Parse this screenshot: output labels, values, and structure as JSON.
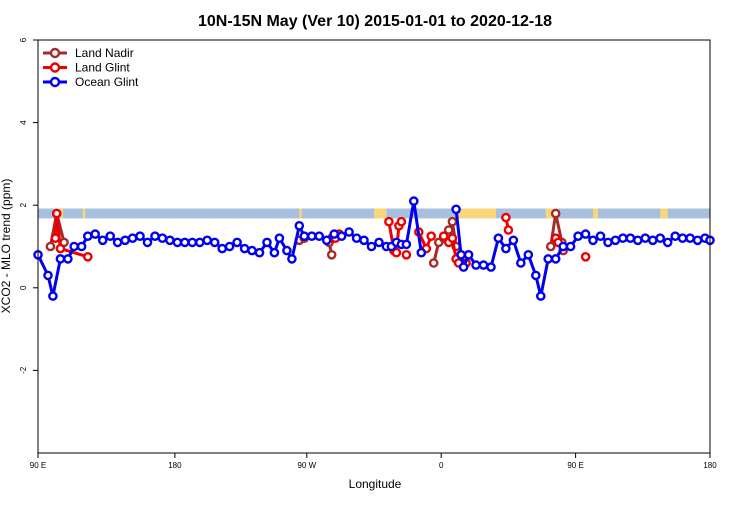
{
  "chart_data": {
    "type": "line",
    "title": "10N-15N May (Ver 10)   2015-01-01 to 2020-12-18",
    "xlabel": "Longitude",
    "ylabel": "XCO2 - MLO trend (ppm)",
    "xlim": [
      -90,
      180
    ],
    "ylim": [
      -4,
      6
    ],
    "x_ticks": [
      {
        "value": -90,
        "label": "90 E"
      },
      {
        "value": -35,
        "label": "180"
      },
      {
        "value": 18,
        "label": "90 W"
      },
      {
        "value": 72,
        "label": "0"
      },
      {
        "value": 126,
        "label": "90 E"
      },
      {
        "value": 180,
        "label": "180"
      }
    ],
    "y_ticks": [
      -2,
      0,
      2,
      4,
      6
    ],
    "grid": false,
    "legend_position": "top-left",
    "band": {
      "y_min": 1.68,
      "y_max": 1.92,
      "color": "#a9bfde",
      "land_color": "#f7d77a",
      "land_x": [
        [
          -83,
          -80
        ],
        [
          -72,
          -71
        ],
        [
          15,
          16
        ],
        [
          45,
          50
        ],
        [
          79,
          94
        ],
        [
          114,
          117
        ],
        [
          133,
          135
        ],
        [
          160,
          163
        ]
      ]
    },
    "series": [
      {
        "name": "Land Nadir",
        "color": "#a52a2a",
        "segments": [
          [
            [
              -85,
              1.0
            ],
            [
              -82.5,
              1.8
            ],
            [
              -79.5,
              1.1
            ]
          ],
          [
            [
              15,
              1.15
            ],
            [
              17,
              1.2
            ]
          ],
          [
            [
              27,
              1.1
            ],
            [
              28,
              0.8
            ]
          ],
          [
            [
              69,
              0.6
            ],
            [
              71,
              1.1
            ],
            [
              73,
              1.2
            ],
            [
              75,
              1.4
            ],
            [
              76.5,
              1.6
            ],
            [
              78,
              1.0
            ]
          ],
          [
            [
              116,
              1.0
            ],
            [
              118,
              1.8
            ],
            [
              120.5,
              1.1
            ],
            [
              121,
              0.9
            ]
          ]
        ]
      },
      {
        "name": "Land Glint",
        "color": "#ee0000",
        "segments": [
          [
            [
              -83,
              1.2
            ],
            [
              -82.5,
              1.8
            ],
            [
              -81,
              0.95
            ],
            [
              -70,
              0.75
            ]
          ],
          [
            [
              28,
              1.2
            ],
            [
              29.5,
              1.2
            ],
            [
              31,
              1.3
            ]
          ],
          [
            [
              51,
              1.6
            ],
            [
              53,
              0.9
            ],
            [
              54,
              0.85
            ],
            [
              55,
              1.5
            ],
            [
              56,
              1.6
            ]
          ],
          [
            [
              58,
              0.8
            ]
          ],
          [
            [
              63,
              1.35
            ],
            [
              66,
              0.95
            ],
            [
              68,
              1.25
            ]
          ],
          [
            [
              73,
              1.25
            ],
            [
              75,
              1.1
            ],
            [
              76.5,
              1.2
            ],
            [
              78,
              0.7
            ],
            [
              79,
              0.6
            ]
          ],
          [
            [
              82,
              0.6
            ]
          ],
          [
            [
              98,
              1.7
            ],
            [
              99,
              1.4
            ]
          ],
          [
            [
              118,
              1.2
            ],
            [
              119,
              1.1
            ]
          ],
          [
            [
              130,
              0.75
            ]
          ]
        ]
      },
      {
        "name": "Ocean Glint",
        "color": "#0000ee",
        "segments": [
          [
            [
              -90,
              0.8
            ],
            [
              -86,
              0.3
            ],
            [
              -84,
              -0.2
            ],
            [
              -81,
              0.7
            ],
            [
              -78,
              0.7
            ],
            [
              -75.5,
              1.0
            ],
            [
              -72.5,
              1.0
            ],
            [
              -70,
              1.25
            ],
            [
              -67,
              1.3
            ],
            [
              -64,
              1.15
            ],
            [
              -61,
              1.25
            ],
            [
              -58,
              1.1
            ],
            [
              -55,
              1.15
            ],
            [
              -52,
              1.2
            ],
            [
              -49,
              1.25
            ],
            [
              -46,
              1.1
            ],
            [
              -43,
              1.25
            ],
            [
              -40,
              1.2
            ],
            [
              -37,
              1.15
            ],
            [
              -34,
              1.1
            ],
            [
              -31,
              1.1
            ],
            [
              -28,
              1.1
            ],
            [
              -25,
              1.1
            ],
            [
              -22,
              1.15
            ],
            [
              -19,
              1.1
            ],
            [
              -16,
              0.95
            ],
            [
              -13,
              1.0
            ],
            [
              -10,
              1.1
            ],
            [
              -7,
              0.95
            ],
            [
              -4,
              0.9
            ],
            [
              -1,
              0.85
            ],
            [
              2,
              1.1
            ],
            [
              5,
              0.85
            ],
            [
              7,
              1.2
            ],
            [
              10,
              0.9
            ],
            [
              12,
              0.7
            ],
            [
              15,
              1.5
            ],
            [
              17,
              1.25
            ],
            [
              20,
              1.25
            ],
            [
              23,
              1.25
            ],
            [
              26,
              1.15
            ],
            [
              29,
              1.3
            ],
            [
              32,
              1.25
            ],
            [
              35,
              1.35
            ],
            [
              38,
              1.2
            ],
            [
              41,
              1.15
            ],
            [
              44,
              1.0
            ],
            [
              47,
              1.1
            ],
            [
              50,
              1.0
            ],
            [
              52,
              1.0
            ],
            [
              54,
              1.1
            ],
            [
              56,
              1.05
            ],
            [
              58,
              1.05
            ],
            [
              61,
              2.1
            ],
            [
              64,
              0.85
            ]
          ],
          [
            [
              78,
              1.9
            ],
            [
              80,
              0.8
            ],
            [
              81,
              0.5
            ],
            [
              83,
              0.8
            ],
            [
              86,
              0.55
            ],
            [
              89,
              0.55
            ],
            [
              92,
              0.5
            ],
            [
              95,
              1.2
            ],
            [
              98,
              0.95
            ],
            [
              101,
              1.15
            ],
            [
              104,
              0.6
            ],
            [
              107,
              0.8
            ],
            [
              110,
              0.3
            ],
            [
              112,
              -0.2
            ],
            [
              115,
              0.7
            ],
            [
              118,
              0.7
            ],
            [
              121,
              1.0
            ],
            [
              124,
              1.0
            ],
            [
              127,
              1.25
            ],
            [
              130,
              1.3
            ],
            [
              133,
              1.15
            ],
            [
              136,
              1.25
            ],
            [
              139,
              1.1
            ],
            [
              142,
              1.15
            ],
            [
              145,
              1.2
            ],
            [
              148,
              1.2
            ],
            [
              151,
              1.15
            ],
            [
              154,
              1.2
            ],
            [
              157,
              1.15
            ],
            [
              160,
              1.2
            ],
            [
              163,
              1.1
            ],
            [
              166,
              1.25
            ],
            [
              169,
              1.2
            ],
            [
              172,
              1.2
            ],
            [
              175,
              1.15
            ],
            [
              178,
              1.2
            ],
            [
              180,
              1.15
            ]
          ]
        ]
      }
    ]
  }
}
